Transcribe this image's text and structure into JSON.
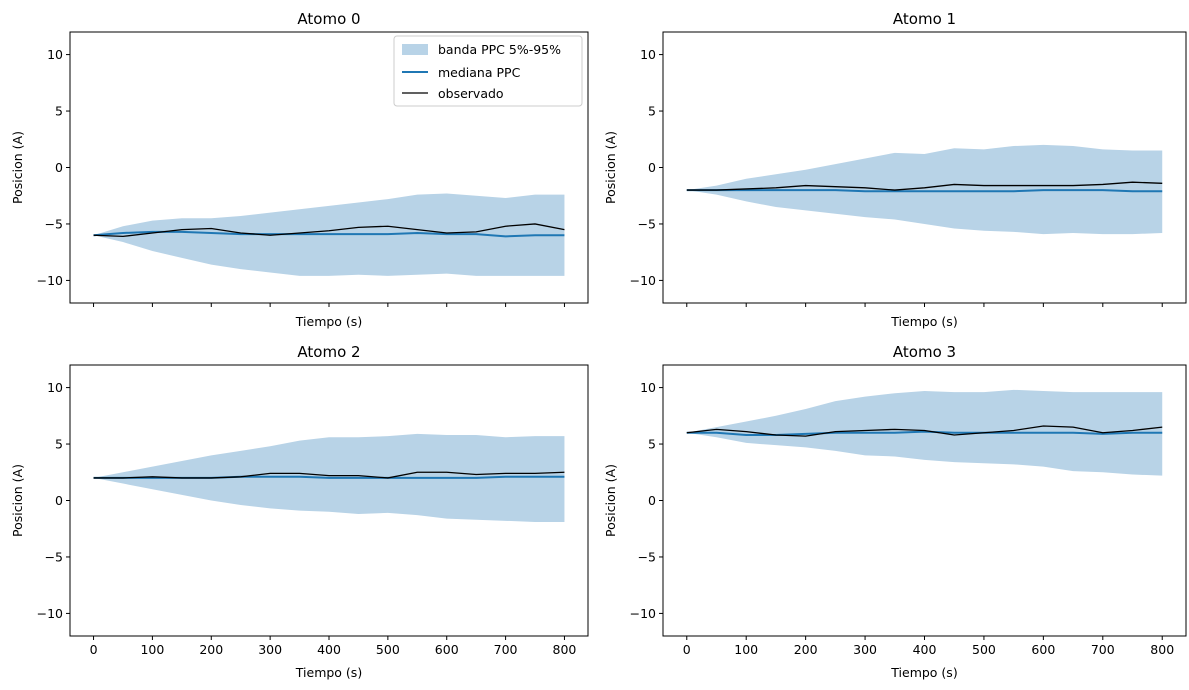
{
  "legend": {
    "band_label": "banda PPC 5%-95%",
    "median_label": "mediana PPC",
    "observed_label": "observado"
  },
  "colors": {
    "band": "#b8d3e7",
    "median": "#1f77b4",
    "observed": "#000000",
    "axes": "#000000"
  },
  "chart_data": [
    {
      "type": "line",
      "title": "Atomo 0",
      "xlabel": "Tiempo (s)",
      "ylabel": "Posicion (A)",
      "xlim": [
        -40,
        840
      ],
      "ylim": [
        -12,
        12
      ],
      "xticks": [
        0,
        100,
        200,
        300,
        400,
        500,
        600,
        700,
        800
      ],
      "yticks": [
        -10,
        -5,
        0,
        5,
        10
      ],
      "show_x_ticklabels": false,
      "show_xlabel": true,
      "legend": "top-right",
      "x": [
        0,
        50,
        100,
        150,
        200,
        250,
        300,
        350,
        400,
        450,
        500,
        550,
        600,
        650,
        700,
        750,
        800
      ],
      "band_upper": [
        -6.0,
        -5.2,
        -4.7,
        -4.5,
        -4.5,
        -4.3,
        -4.0,
        -3.7,
        -3.4,
        -3.1,
        -2.8,
        -2.4,
        -2.3,
        -2.5,
        -2.7,
        -2.4,
        -2.4
      ],
      "band_lower": [
        -6.0,
        -6.6,
        -7.4,
        -8.0,
        -8.6,
        -9.0,
        -9.3,
        -9.6,
        -9.6,
        -9.5,
        -9.6,
        -9.5,
        -9.4,
        -9.6,
        -9.6,
        -9.6,
        -9.6
      ],
      "median": [
        -6.0,
        -5.8,
        -5.7,
        -5.7,
        -5.8,
        -5.9,
        -5.9,
        -5.9,
        -5.9,
        -5.9,
        -5.9,
        -5.8,
        -5.9,
        -5.9,
        -6.1,
        -6.0,
        -6.0
      ],
      "observed": [
        -6.0,
        -6.1,
        -5.8,
        -5.5,
        -5.4,
        -5.8,
        -6.0,
        -5.8,
        -5.6,
        -5.3,
        -5.2,
        -5.5,
        -5.8,
        -5.7,
        -5.2,
        -5.0,
        -5.5
      ]
    },
    {
      "type": "line",
      "title": "Atomo 1",
      "xlabel": "Tiempo (s)",
      "ylabel": "Posicion (A)",
      "xlim": [
        -40,
        840
      ],
      "ylim": [
        -12,
        12
      ],
      "xticks": [
        0,
        100,
        200,
        300,
        400,
        500,
        600,
        700,
        800
      ],
      "yticks": [
        -10,
        -5,
        0,
        5,
        10
      ],
      "show_x_ticklabels": false,
      "show_xlabel": true,
      "x": [
        0,
        50,
        100,
        150,
        200,
        250,
        300,
        350,
        400,
        450,
        500,
        550,
        600,
        650,
        700,
        750,
        800
      ],
      "band_upper": [
        -2.0,
        -1.6,
        -1.0,
        -0.6,
        -0.2,
        0.3,
        0.8,
        1.3,
        1.2,
        1.7,
        1.6,
        1.9,
        2.0,
        1.9,
        1.6,
        1.5,
        1.5
      ],
      "band_lower": [
        -2.0,
        -2.4,
        -3.0,
        -3.5,
        -3.8,
        -4.1,
        -4.4,
        -4.6,
        -5.0,
        -5.4,
        -5.6,
        -5.7,
        -5.9,
        -5.8,
        -5.9,
        -5.9,
        -5.8
      ],
      "median": [
        -2.0,
        -2.0,
        -2.0,
        -2.0,
        -2.0,
        -2.0,
        -2.1,
        -2.1,
        -2.1,
        -2.1,
        -2.1,
        -2.1,
        -2.0,
        -2.0,
        -2.0,
        -2.1,
        -2.1
      ],
      "observed": [
        -2.0,
        -2.0,
        -1.9,
        -1.8,
        -1.6,
        -1.7,
        -1.8,
        -2.0,
        -1.8,
        -1.5,
        -1.6,
        -1.6,
        -1.6,
        -1.6,
        -1.5,
        -1.3,
        -1.4
      ]
    },
    {
      "type": "line",
      "title": "Atomo 2",
      "xlabel": "Tiempo (s)",
      "ylabel": "Posicion (A)",
      "xlim": [
        -40,
        840
      ],
      "ylim": [
        -12,
        12
      ],
      "xticks": [
        0,
        100,
        200,
        300,
        400,
        500,
        600,
        700,
        800
      ],
      "yticks": [
        -10,
        -5,
        0,
        5,
        10
      ],
      "show_x_ticklabels": true,
      "show_xlabel": true,
      "x": [
        0,
        50,
        100,
        150,
        200,
        250,
        300,
        350,
        400,
        450,
        500,
        550,
        600,
        650,
        700,
        750,
        800
      ],
      "band_upper": [
        2.0,
        2.5,
        3.0,
        3.5,
        4.0,
        4.4,
        4.8,
        5.3,
        5.6,
        5.6,
        5.7,
        5.9,
        5.8,
        5.8,
        5.6,
        5.7,
        5.7
      ],
      "band_lower": [
        2.0,
        1.5,
        1.0,
        0.5,
        0.0,
        -0.4,
        -0.7,
        -0.9,
        -1.0,
        -1.2,
        -1.1,
        -1.3,
        -1.6,
        -1.7,
        -1.8,
        -1.9,
        -1.9
      ],
      "median": [
        2.0,
        2.0,
        2.0,
        2.0,
        2.0,
        2.1,
        2.1,
        2.1,
        2.0,
        2.0,
        2.0,
        2.0,
        2.0,
        2.0,
        2.1,
        2.1,
        2.1
      ],
      "observed": [
        2.0,
        2.0,
        2.1,
        2.0,
        2.0,
        2.1,
        2.4,
        2.4,
        2.2,
        2.2,
        2.0,
        2.5,
        2.5,
        2.3,
        2.4,
        2.4,
        2.5
      ]
    },
    {
      "type": "line",
      "title": "Atomo 3",
      "xlabel": "Tiempo (s)",
      "ylabel": "Posicion (A)",
      "xlim": [
        -40,
        840
      ],
      "ylim": [
        -12,
        12
      ],
      "xticks": [
        0,
        100,
        200,
        300,
        400,
        500,
        600,
        700,
        800
      ],
      "yticks": [
        -10,
        -5,
        0,
        5,
        10
      ],
      "show_x_ticklabels": true,
      "show_xlabel": true,
      "x": [
        0,
        50,
        100,
        150,
        200,
        250,
        300,
        350,
        400,
        450,
        500,
        550,
        600,
        650,
        700,
        750,
        800
      ],
      "band_upper": [
        6.0,
        6.5,
        7.0,
        7.5,
        8.1,
        8.8,
        9.2,
        9.5,
        9.7,
        9.6,
        9.6,
        9.8,
        9.7,
        9.6,
        9.6,
        9.6,
        9.6
      ],
      "band_lower": [
        6.0,
        5.6,
        5.1,
        4.9,
        4.7,
        4.4,
        4.0,
        3.9,
        3.6,
        3.4,
        3.3,
        3.2,
        3.0,
        2.6,
        2.5,
        2.3,
        2.2
      ],
      "median": [
        6.0,
        6.0,
        5.8,
        5.8,
        5.9,
        6.0,
        6.0,
        6.0,
        6.1,
        6.0,
        6.0,
        6.0,
        6.0,
        6.0,
        5.9,
        6.0,
        6.0
      ],
      "observed": [
        6.0,
        6.3,
        6.1,
        5.8,
        5.7,
        6.1,
        6.2,
        6.3,
        6.2,
        5.8,
        6.0,
        6.2,
        6.6,
        6.5,
        6.0,
        6.2,
        6.5
      ]
    }
  ]
}
